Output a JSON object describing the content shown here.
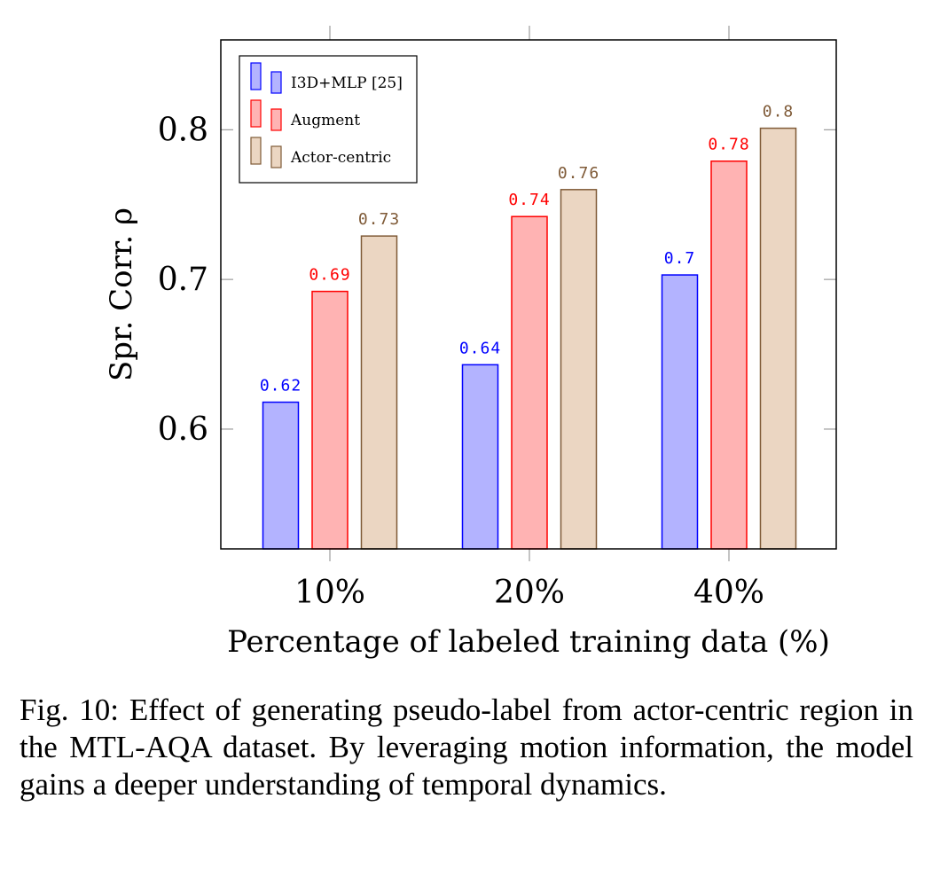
{
  "chart_data": {
    "type": "bar",
    "categories": [
      "10%",
      "20%",
      "40%"
    ],
    "series": [
      {
        "name": "I3D+MLP [25]",
        "values": [
          0.618,
          0.643,
          0.703
        ],
        "labels": [
          "0.62",
          "0.64",
          "0.7"
        ],
        "color": "#0000ff",
        "fill": "#b3b3ff"
      },
      {
        "name": "Augment",
        "values": [
          0.692,
          0.742,
          0.779
        ],
        "labels": [
          "0.69",
          "0.74",
          "0.78"
        ],
        "color": "#ff0000",
        "fill": "#ffb3b3"
      },
      {
        "name": "Actor-centric",
        "values": [
          0.729,
          0.76,
          0.801
        ],
        "labels": [
          "0.73",
          "0.76",
          "0.8"
        ],
        "color": "#7f5a37",
        "fill": "#ebd6c2"
      }
    ],
    "xlabel": "Percentage of labeled training data (%)",
    "ylabel": "Spr. Corr. ρ",
    "ylim": [
      0.52,
      0.86
    ],
    "yticks": [
      0.6,
      0.7,
      0.8
    ],
    "ytick_labels": [
      "0.6",
      "0.7",
      "0.8"
    ],
    "legend_position": "top-left",
    "grid": false
  },
  "caption": "Fig. 10: Effect of generating pseudo-label from actor-centric region in the MTL-AQA dataset. By leveraging motion information, the model gains a deeper understanding of temporal dynamics."
}
